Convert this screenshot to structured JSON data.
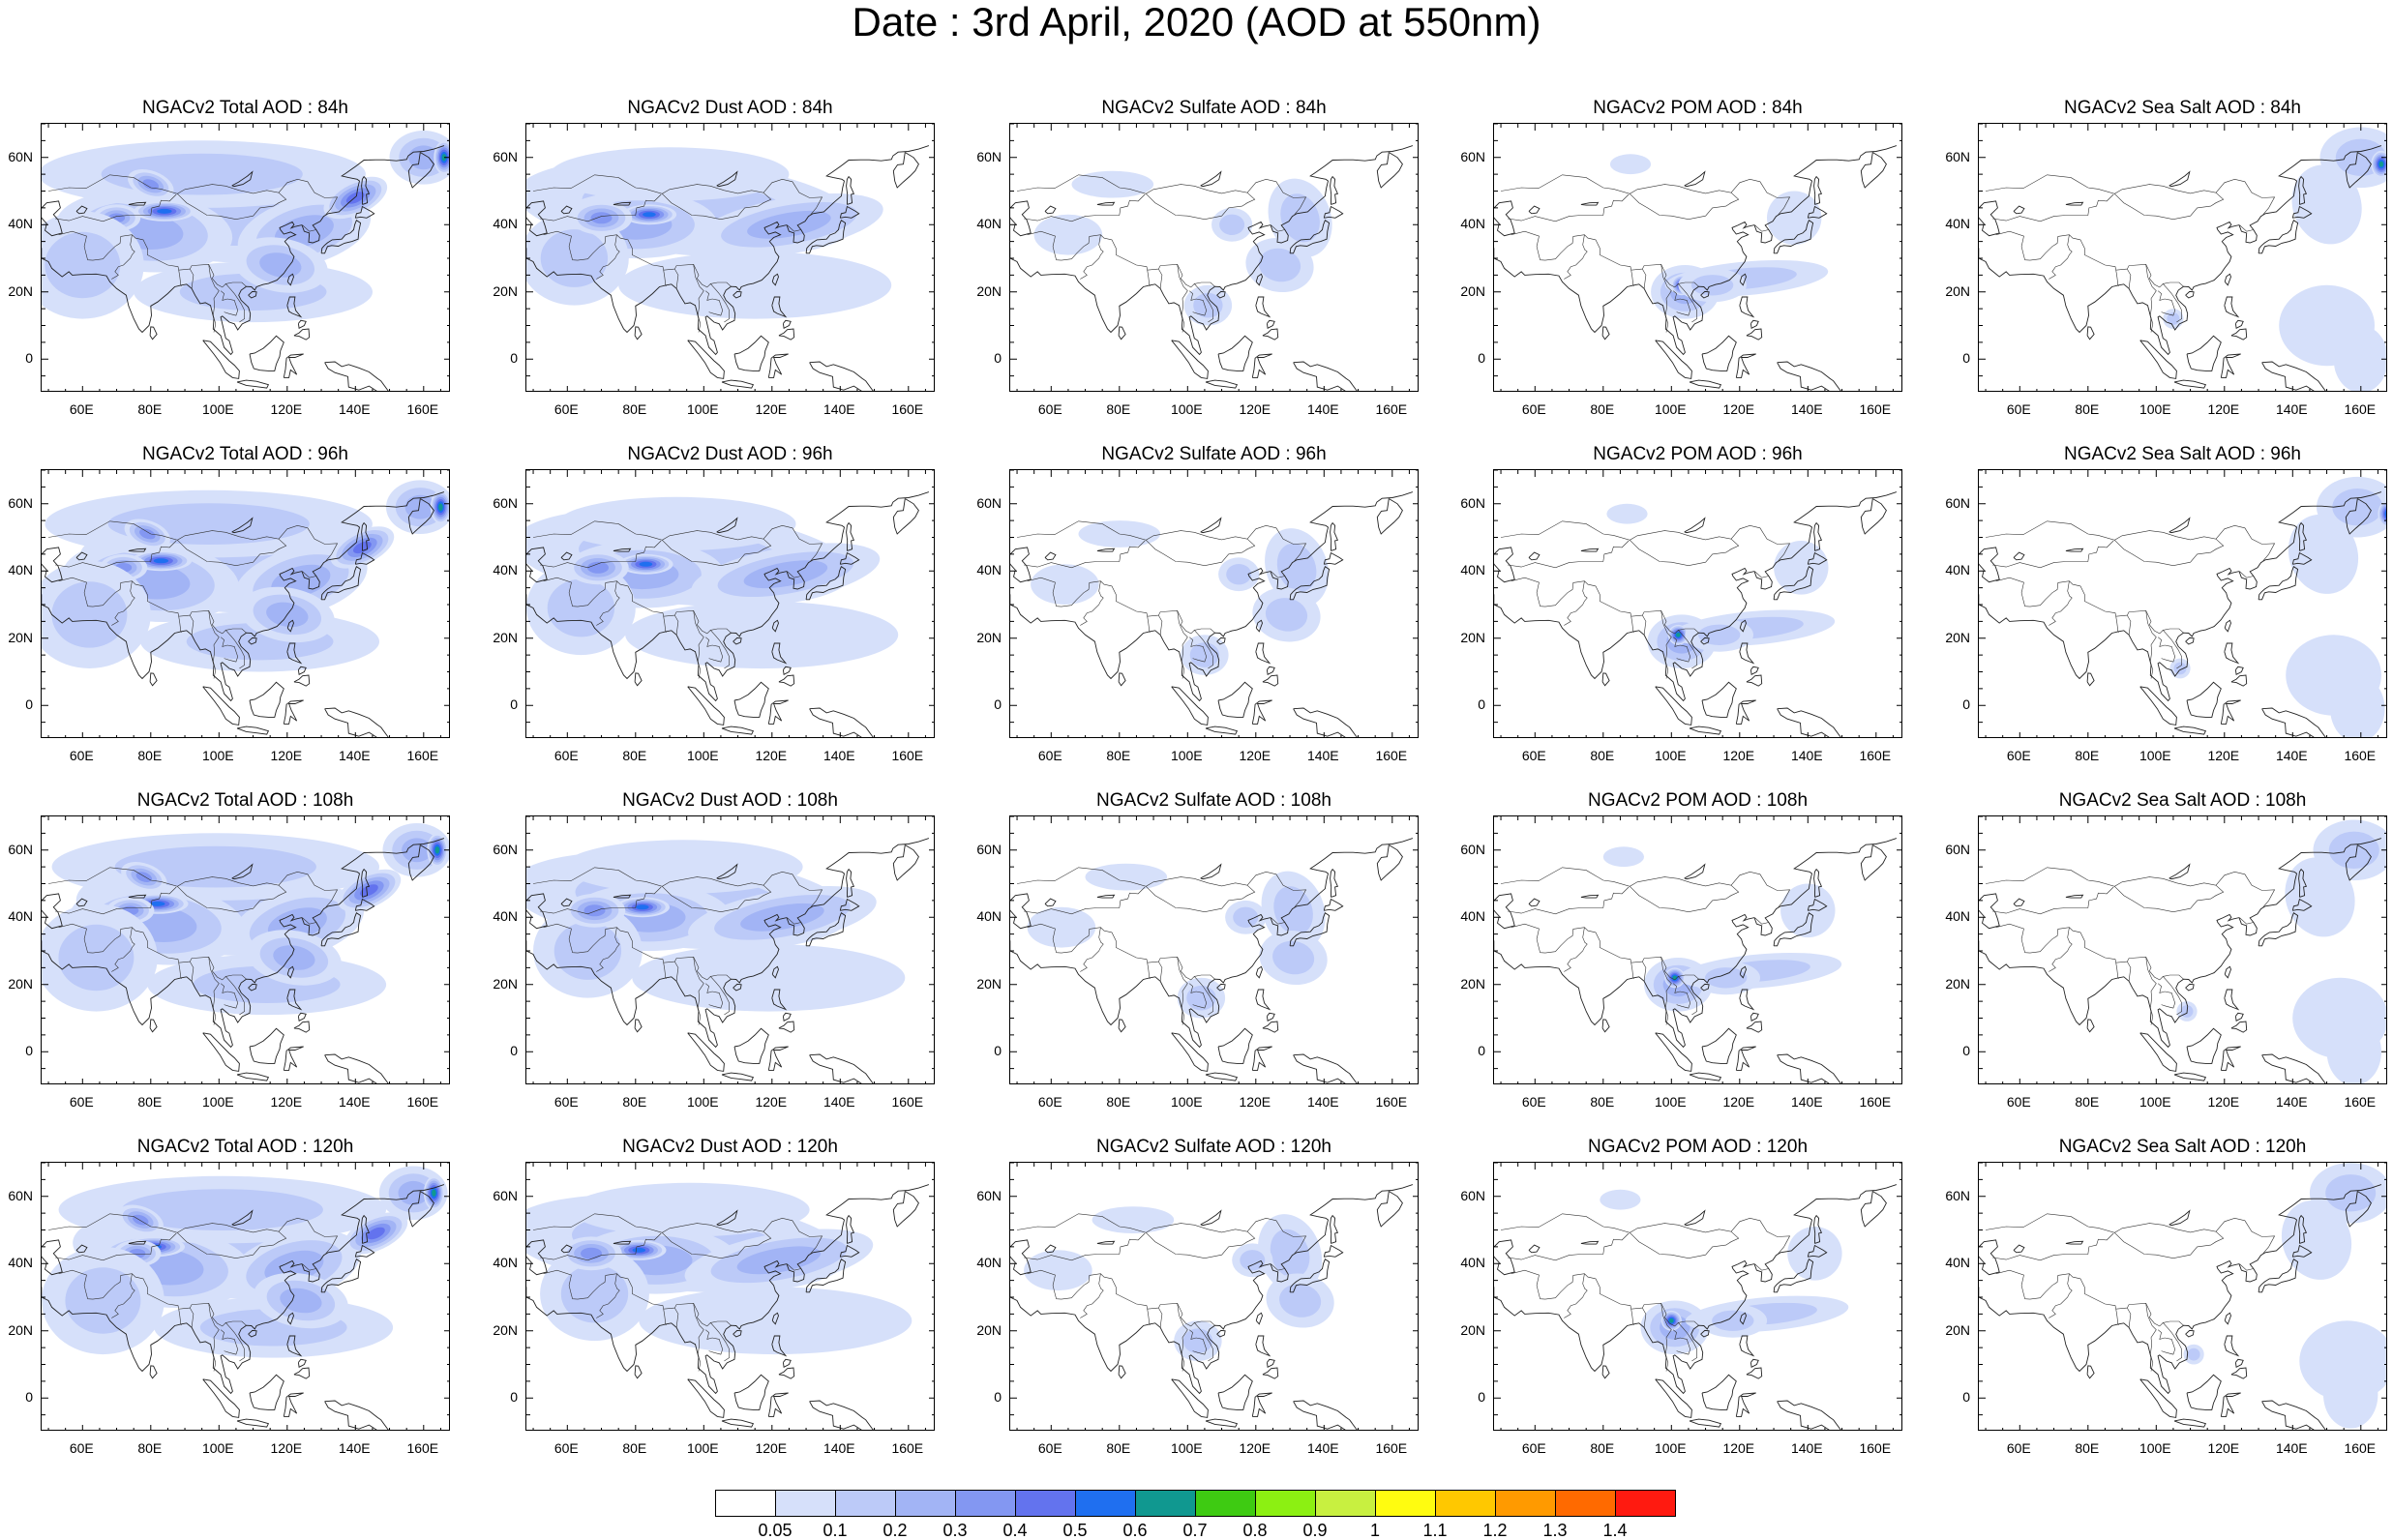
{
  "title": "Date : 3rd April, 2020 (AOD at 550nm)",
  "x_ticks": [
    "60E",
    "80E",
    "100E",
    "120E",
    "140E",
    "160E"
  ],
  "x_tick_values": [
    60,
    80,
    100,
    120,
    140,
    160
  ],
  "y_ticks": [
    "60N",
    "40N",
    "20N",
    "0"
  ],
  "y_tick_values": [
    60,
    40,
    20,
    0
  ],
  "lon_range": [
    48,
    168
  ],
  "lat_range": [
    -10,
    70
  ],
  "colorbar": {
    "labels": [
      "0.05",
      "0.1",
      "0.2",
      "0.3",
      "0.4",
      "0.5",
      "0.6",
      "0.7",
      "0.8",
      "0.9",
      "1",
      "1.1",
      "1.2",
      "1.3",
      "1.4"
    ],
    "colors": [
      "#ffffff",
      "#d6e0fa",
      "#bccaf8",
      "#a2b4f5",
      "#8397f2",
      "#6373ee",
      "#1f6ff0",
      "#109890",
      "#3ecb12",
      "#8cf012",
      "#c8f040",
      "#fffc10",
      "#ffc800",
      "#ff9a00",
      "#ff6a00",
      "#ff1a10"
    ]
  },
  "panels": [
    {
      "title": "NGACv2 Total AOD : 84h",
      "species": "total",
      "hour": 84
    },
    {
      "title": "NGACv2 Dust AOD : 84h",
      "species": "dust",
      "hour": 84
    },
    {
      "title": "NGACv2 Sulfate AOD : 84h",
      "species": "sulfate",
      "hour": 84
    },
    {
      "title": "NGACv2 POM AOD : 84h",
      "species": "pom",
      "hour": 84
    },
    {
      "title": "NGACv2 Sea Salt AOD : 84h",
      "species": "seasalt",
      "hour": 84
    },
    {
      "title": "NGACv2 Total AOD : 96h",
      "species": "total",
      "hour": 96
    },
    {
      "title": "NGACv2 Dust AOD : 96h",
      "species": "dust",
      "hour": 96
    },
    {
      "title": "NGACv2 Sulfate AOD : 96h",
      "species": "sulfate",
      "hour": 96
    },
    {
      "title": "NGACv2 POM AOD : 96h",
      "species": "pom",
      "hour": 96
    },
    {
      "title": "NGACv2 Sea Salt AOD : 96h",
      "species": "seasalt",
      "hour": 96
    },
    {
      "title": "NGACv2 Total AOD : 108h",
      "species": "total",
      "hour": 108
    },
    {
      "title": "NGACv2 Dust AOD : 108h",
      "species": "dust",
      "hour": 108
    },
    {
      "title": "NGACv2 Sulfate AOD : 108h",
      "species": "sulfate",
      "hour": 108
    },
    {
      "title": "NGACv2 POM AOD : 108h",
      "species": "pom",
      "hour": 108
    },
    {
      "title": "NGACv2 Sea Salt AOD : 108h",
      "species": "seasalt",
      "hour": 108
    },
    {
      "title": "NGACv2 Total AOD : 120h",
      "species": "total",
      "hour": 120
    },
    {
      "title": "NGACv2 Dust AOD : 120h",
      "species": "dust",
      "hour": 120
    },
    {
      "title": "NGACv2 Sulfate AOD : 120h",
      "species": "sulfate",
      "hour": 120
    },
    {
      "title": "NGACv2 POM AOD : 120h",
      "species": "pom",
      "hour": 120
    },
    {
      "title": "NGACv2 Sea Salt  AOD : 120h",
      "species": "seasalt",
      "hour": 120
    }
  ]
}
